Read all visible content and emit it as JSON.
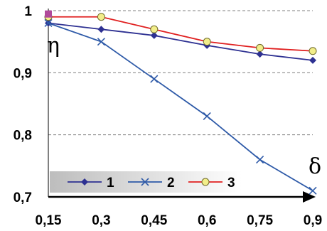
{
  "chart_data": {
    "type": "line",
    "x": [
      0.15,
      0.3,
      0.45,
      0.6,
      0.75,
      0.9
    ],
    "x_tick_labels": [
      "0,15",
      "0,3",
      "0,45",
      "0,6",
      "0,75",
      "0,9"
    ],
    "y_tick_labels": [
      "1",
      "0,9",
      "0,8",
      "0,7"
    ],
    "y_ticks": [
      1,
      0.9,
      0.8,
      0.7
    ],
    "xlim": [
      0.15,
      0.9
    ],
    "ylim": [
      0.7,
      1.0
    ],
    "xlabel": "δ",
    "ylabel": "η",
    "grid": "horizontal dashed",
    "legend_position": "bottom-left",
    "series": [
      {
        "name": "1",
        "values": [
          0.98,
          0.97,
          0.96,
          0.944,
          0.93,
          0.92
        ],
        "color": "#2e3192",
        "marker": "diamond"
      },
      {
        "name": "2",
        "values": [
          0.98,
          0.95,
          0.89,
          0.83,
          0.76,
          0.71
        ],
        "color": "#2e5aa8",
        "marker": "cross"
      },
      {
        "name": "3",
        "values": [
          0.99,
          0.99,
          0.97,
          0.95,
          0.94,
          0.935
        ],
        "color": "#e02020",
        "marker": "circle",
        "marker_fill": "#f2ee8a"
      }
    ]
  }
}
